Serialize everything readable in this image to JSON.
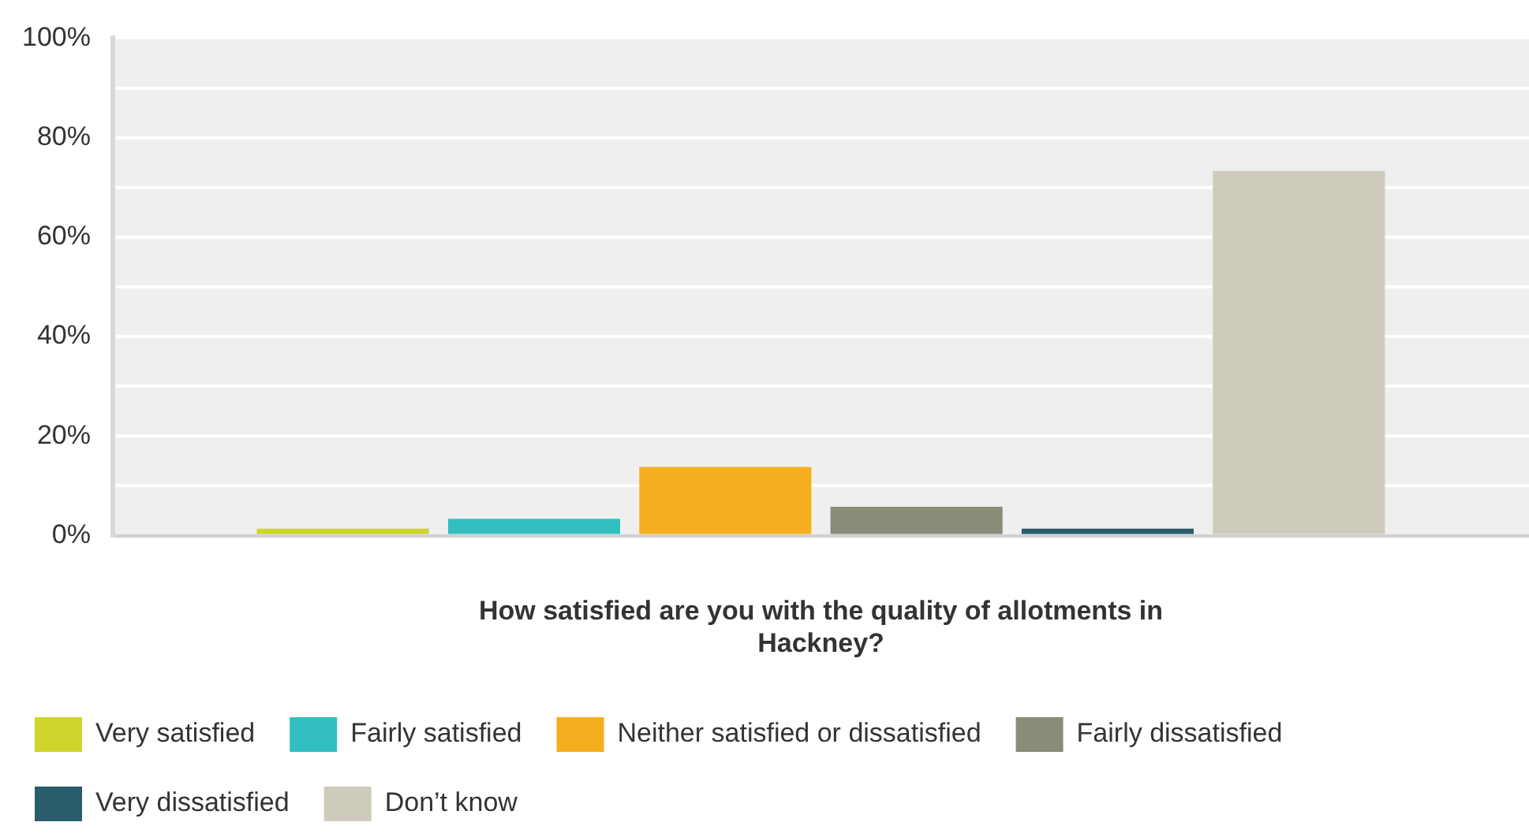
{
  "chart_data": {
    "type": "bar",
    "xlabel": "How satisfied are you with the quality of allotments in Hackney?",
    "categories": [
      null
    ],
    "series": [
      {
        "name": "Very satisfied",
        "color": "#cfd42a",
        "values": [
          1.4
        ]
      },
      {
        "name": "Fairly satisfied",
        "color": "#33bec0",
        "values": [
          3.4
        ]
      },
      {
        "name": "Neither satisfied or dissatisfied",
        "color": "#f6ae1e",
        "values": [
          13.8
        ]
      },
      {
        "name": "Fairly dissatisfied",
        "color": "#8a8b79",
        "values": [
          5.8
        ]
      },
      {
        "name": "Very dissatisfied",
        "color": "#2b5c6b",
        "values": [
          1.4
        ]
      },
      {
        "name": "Don’t know",
        "color": "#cecbbc",
        "values": [
          73.3
        ]
      }
    ],
    "ylim": [
      0,
      100
    ],
    "yticks": [
      {
        "value": 0,
        "label": "0%"
      },
      {
        "value": 10,
        "label": null
      },
      {
        "value": 20,
        "label": "20%"
      },
      {
        "value": 30,
        "label": null
      },
      {
        "value": 40,
        "label": "40%"
      },
      {
        "value": 50,
        "label": null
      },
      {
        "value": 60,
        "label": "60%"
      },
      {
        "value": 70,
        "label": null
      },
      {
        "value": 80,
        "label": "80%"
      },
      {
        "value": 90,
        "label": null
      },
      {
        "value": 100,
        "label": "100%"
      }
    ],
    "grid": "y",
    "legend": "bottom"
  }
}
